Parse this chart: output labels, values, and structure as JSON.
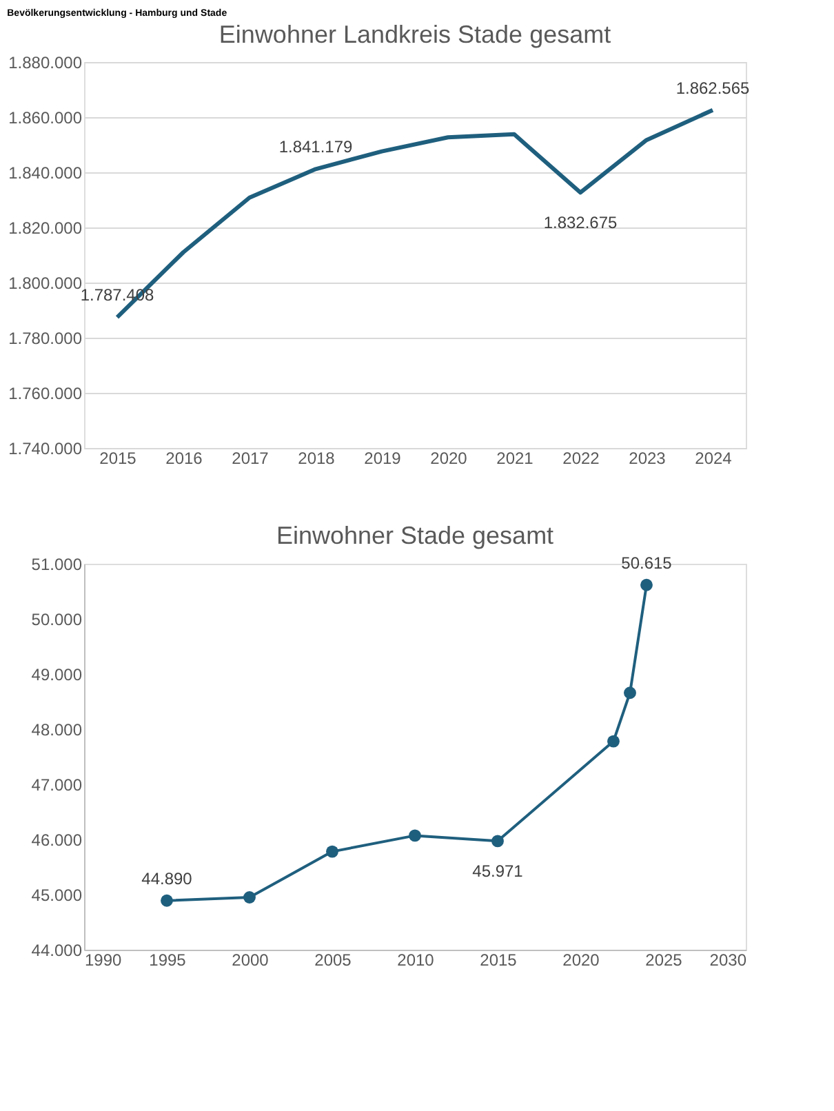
{
  "chart_data": [
    {
      "type": "line",
      "title": "Einwohner Landkreis Stade gesamt",
      "annotations": [
        "Bevölkerungsentwicklung - Hamburg und Stade"
      ],
      "categories": [
        "2015",
        "2016",
        "2017",
        "2018",
        "2019",
        "2020",
        "2021",
        "2022",
        "2023",
        "2024"
      ],
      "series": [
        {
          "color": "#1f5f7e",
          "values": [
            1787408,
            1811000,
            1830800,
            1841179,
            1847600,
            1852700,
            1853800,
            1832675,
            1851700,
            1862565
          ],
          "value_labels": [
            "1.787.408",
            null,
            null,
            "1.841.179",
            null,
            null,
            null,
            "1.832.675",
            null,
            "1.862.565"
          ]
        }
      ],
      "ylim": [
        1740000,
        1880000
      ],
      "yticks": [
        {
          "value": 1740000,
          "label": "1.740.000"
        },
        {
          "value": 1760000,
          "label": "1.760.000"
        },
        {
          "value": 1780000,
          "label": "1.780.000"
        },
        {
          "value": 1800000,
          "label": "1.800.000"
        },
        {
          "value": 1820000,
          "label": "1.820.000"
        },
        {
          "value": 1840000,
          "label": "1.840.000"
        },
        {
          "value": 1860000,
          "label": "1.860.000"
        },
        {
          "value": 1880000,
          "label": "1.880.000"
        }
      ],
      "grid": "y",
      "marker": "none",
      "line_style": "solid"
    },
    {
      "type": "line",
      "title": "Einwohner Stade gesamt",
      "series": [
        {
          "color": "#1f5f7e",
          "x": [
            1995,
            2000,
            2005,
            2010,
            2015,
            2022,
            2023,
            2024
          ],
          "values": [
            44890,
            44950,
            45780,
            46070,
            45971,
            47780,
            48660,
            50615
          ],
          "value_labels": [
            "44.890",
            null,
            null,
            null,
            "45.971",
            null,
            null,
            "50.615"
          ]
        }
      ],
      "xlim": [
        1990,
        2030
      ],
      "xticks": [
        1990,
        1995,
        2000,
        2005,
        2010,
        2015,
        2020,
        2025,
        2030
      ],
      "ylim": [
        44000,
        51000
      ],
      "yticks": [
        {
          "value": 44000,
          "label": "44.000"
        },
        {
          "value": 45000,
          "label": "45.000"
        },
        {
          "value": 46000,
          "label": "46.000"
        },
        {
          "value": 47000,
          "label": "47.000"
        },
        {
          "value": 48000,
          "label": "48.000"
        },
        {
          "value": 49000,
          "label": "49.000"
        },
        {
          "value": 50000,
          "label": "50.000"
        },
        {
          "value": 51000,
          "label": "51.000"
        }
      ],
      "grid": false,
      "marker": "circle",
      "line_style": "solid"
    }
  ]
}
